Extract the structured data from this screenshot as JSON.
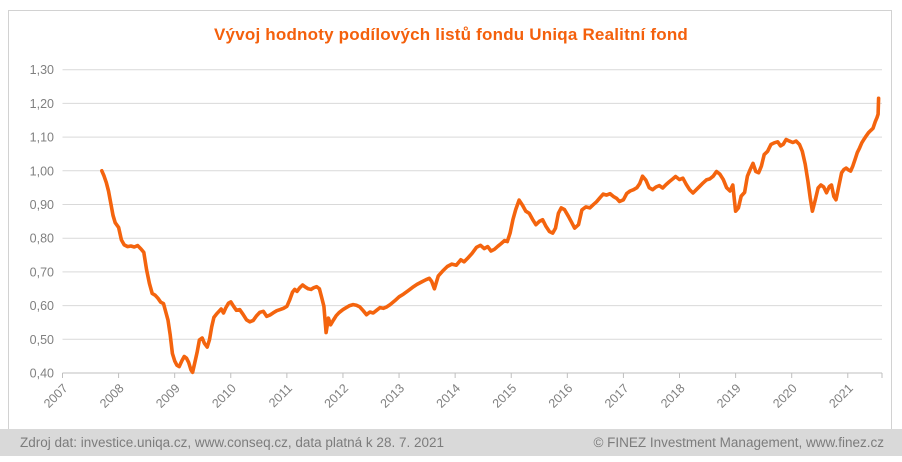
{
  "title": "Vývoj hodnoty podílových listů fondu Uniqa Realitní fond",
  "footer": {
    "left": "Zdroj dat: investice.uniqa.cz, www.conseq.cz, data platná k 28. 7. 2021",
    "right": "© FINEZ Investment Management, www.finez.cz"
  },
  "colors": {
    "accent": "#F4640E",
    "title_text": "#F4600C",
    "grid_line": "#D9D9D9",
    "axis_line": "#BFBFBF",
    "axis_text": "#808080",
    "frame_border": "#D2D2D2",
    "footer_bg": "#D9D9D9",
    "footer_text": "#7C7C7C",
    "background": "#FFFFFF"
  },
  "chart_data": {
    "type": "line",
    "title": "Vývoj hodnoty podílových listů fondu Uniqa Realitní fond",
    "xlabel": "",
    "ylabel": "",
    "grid": true,
    "legend": "none",
    "xlim": [
      2007,
      2021.61
    ],
    "ylim": [
      0.4,
      1.3
    ],
    "x_ticks": [
      "2007",
      "2008",
      "2009",
      "2010",
      "2011",
      "2012",
      "2013",
      "2014",
      "2015",
      "2016",
      "2017",
      "2018",
      "2019",
      "2020",
      "2021"
    ],
    "y_ticks": [
      "1,30",
      "1,20",
      "1,10",
      "1,00",
      "0,90",
      "0,80",
      "0,70",
      "0,60",
      "0,50",
      "0,40"
    ],
    "y_tick_values": [
      1.3,
      1.2,
      1.1,
      1.0,
      0.9,
      0.8,
      0.7,
      0.6,
      0.5,
      0.4
    ],
    "series": [
      {
        "points": [
          [
            2007.7,
            1.0
          ],
          [
            2007.74,
            0.985
          ],
          [
            2007.78,
            0.965
          ],
          [
            2007.82,
            0.94
          ],
          [
            2007.86,
            0.905
          ],
          [
            2007.9,
            0.868
          ],
          [
            2007.94,
            0.846
          ],
          [
            2008.0,
            0.832
          ],
          [
            2008.05,
            0.795
          ],
          [
            2008.1,
            0.78
          ],
          [
            2008.16,
            0.775
          ],
          [
            2008.22,
            0.777
          ],
          [
            2008.28,
            0.774
          ],
          [
            2008.34,
            0.778
          ],
          [
            2008.4,
            0.768
          ],
          [
            2008.45,
            0.758
          ],
          [
            2008.5,
            0.706
          ],
          [
            2008.55,
            0.666
          ],
          [
            2008.6,
            0.636
          ],
          [
            2008.65,
            0.631
          ],
          [
            2008.7,
            0.622
          ],
          [
            2008.75,
            0.61
          ],
          [
            2008.8,
            0.606
          ],
          [
            2008.84,
            0.582
          ],
          [
            2008.88,
            0.557
          ],
          [
            2008.92,
            0.513
          ],
          [
            2008.96,
            0.458
          ],
          [
            2009.0,
            0.436
          ],
          [
            2009.04,
            0.423
          ],
          [
            2009.08,
            0.419
          ],
          [
            2009.13,
            0.437
          ],
          [
            2009.17,
            0.449
          ],
          [
            2009.21,
            0.444
          ],
          [
            2009.25,
            0.431
          ],
          [
            2009.29,
            0.409
          ],
          [
            2009.32,
            0.402
          ],
          [
            2009.36,
            0.432
          ],
          [
            2009.4,
            0.461
          ],
          [
            2009.44,
            0.498
          ],
          [
            2009.49,
            0.504
          ],
          [
            2009.53,
            0.488
          ],
          [
            2009.58,
            0.477
          ],
          [
            2009.62,
            0.499
          ],
          [
            2009.66,
            0.537
          ],
          [
            2009.7,
            0.565
          ],
          [
            2009.75,
            0.576
          ],
          [
            2009.79,
            0.583
          ],
          [
            2009.83,
            0.59
          ],
          [
            2009.87,
            0.578
          ],
          [
            2009.91,
            0.593
          ],
          [
            2009.96,
            0.607
          ],
          [
            2010.0,
            0.611
          ],
          [
            2010.05,
            0.598
          ],
          [
            2010.1,
            0.586
          ],
          [
            2010.16,
            0.588
          ],
          [
            2010.22,
            0.574
          ],
          [
            2010.28,
            0.558
          ],
          [
            2010.34,
            0.552
          ],
          [
            2010.4,
            0.556
          ],
          [
            2010.46,
            0.57
          ],
          [
            2010.52,
            0.58
          ],
          [
            2010.58,
            0.583
          ],
          [
            2010.64,
            0.568
          ],
          [
            2010.7,
            0.572
          ],
          [
            2010.76,
            0.579
          ],
          [
            2010.82,
            0.585
          ],
          [
            2010.88,
            0.588
          ],
          [
            2010.94,
            0.592
          ],
          [
            2011.0,
            0.598
          ],
          [
            2011.05,
            0.617
          ],
          [
            2011.1,
            0.64
          ],
          [
            2011.14,
            0.648
          ],
          [
            2011.18,
            0.642
          ],
          [
            2011.23,
            0.653
          ],
          [
            2011.28,
            0.661
          ],
          [
            2011.33,
            0.655
          ],
          [
            2011.38,
            0.65
          ],
          [
            2011.43,
            0.648
          ],
          [
            2011.48,
            0.653
          ],
          [
            2011.53,
            0.656
          ],
          [
            2011.58,
            0.65
          ],
          [
            2011.62,
            0.625
          ],
          [
            2011.66,
            0.598
          ],
          [
            2011.7,
            0.52
          ],
          [
            2011.74,
            0.563
          ],
          [
            2011.78,
            0.543
          ],
          [
            2011.83,
            0.557
          ],
          [
            2011.88,
            0.57
          ],
          [
            2011.93,
            0.579
          ],
          [
            2012.0,
            0.588
          ],
          [
            2012.06,
            0.594
          ],
          [
            2012.12,
            0.6
          ],
          [
            2012.18,
            0.603
          ],
          [
            2012.24,
            0.601
          ],
          [
            2012.3,
            0.596
          ],
          [
            2012.36,
            0.585
          ],
          [
            2012.42,
            0.573
          ],
          [
            2012.48,
            0.581
          ],
          [
            2012.54,
            0.578
          ],
          [
            2012.6,
            0.586
          ],
          [
            2012.66,
            0.594
          ],
          [
            2012.72,
            0.592
          ],
          [
            2012.78,
            0.596
          ],
          [
            2012.84,
            0.603
          ],
          [
            2012.92,
            0.614
          ],
          [
            2013.0,
            0.626
          ],
          [
            2013.08,
            0.634
          ],
          [
            2013.16,
            0.644
          ],
          [
            2013.24,
            0.654
          ],
          [
            2013.32,
            0.663
          ],
          [
            2013.4,
            0.67
          ],
          [
            2013.48,
            0.677
          ],
          [
            2013.54,
            0.681
          ],
          [
            2013.58,
            0.672
          ],
          [
            2013.63,
            0.65
          ],
          [
            2013.7,
            0.688
          ],
          [
            2013.78,
            0.703
          ],
          [
            2013.86,
            0.716
          ],
          [
            2013.94,
            0.723
          ],
          [
            2014.02,
            0.72
          ],
          [
            2014.1,
            0.736
          ],
          [
            2014.16,
            0.73
          ],
          [
            2014.22,
            0.74
          ],
          [
            2014.3,
            0.755
          ],
          [
            2014.38,
            0.773
          ],
          [
            2014.45,
            0.779
          ],
          [
            2014.52,
            0.769
          ],
          [
            2014.58,
            0.775
          ],
          [
            2014.64,
            0.762
          ],
          [
            2014.7,
            0.767
          ],
          [
            2014.76,
            0.776
          ],
          [
            2014.82,
            0.784
          ],
          [
            2014.88,
            0.793
          ],
          [
            2014.93,
            0.79
          ],
          [
            2014.98,
            0.815
          ],
          [
            2015.03,
            0.855
          ],
          [
            2015.08,
            0.885
          ],
          [
            2015.14,
            0.913
          ],
          [
            2015.2,
            0.898
          ],
          [
            2015.26,
            0.88
          ],
          [
            2015.32,
            0.874
          ],
          [
            2015.38,
            0.856
          ],
          [
            2015.44,
            0.84
          ],
          [
            2015.5,
            0.85
          ],
          [
            2015.56,
            0.855
          ],
          [
            2015.62,
            0.835
          ],
          [
            2015.68,
            0.82
          ],
          [
            2015.74,
            0.815
          ],
          [
            2015.79,
            0.83
          ],
          [
            2015.84,
            0.874
          ],
          [
            2015.89,
            0.89
          ],
          [
            2015.95,
            0.885
          ],
          [
            2016.02,
            0.865
          ],
          [
            2016.08,
            0.846
          ],
          [
            2016.13,
            0.83
          ],
          [
            2016.2,
            0.84
          ],
          [
            2016.26,
            0.884
          ],
          [
            2016.33,
            0.893
          ],
          [
            2016.4,
            0.89
          ],
          [
            2016.46,
            0.899
          ],
          [
            2016.52,
            0.908
          ],
          [
            2016.58,
            0.92
          ],
          [
            2016.64,
            0.931
          ],
          [
            2016.7,
            0.928
          ],
          [
            2016.76,
            0.932
          ],
          [
            2016.82,
            0.924
          ],
          [
            2016.88,
            0.918
          ],
          [
            2016.93,
            0.909
          ],
          [
            2017.0,
            0.914
          ],
          [
            2017.06,
            0.933
          ],
          [
            2017.12,
            0.94
          ],
          [
            2017.18,
            0.944
          ],
          [
            2017.24,
            0.95
          ],
          [
            2017.29,
            0.962
          ],
          [
            2017.34,
            0.984
          ],
          [
            2017.4,
            0.972
          ],
          [
            2017.46,
            0.95
          ],
          [
            2017.52,
            0.944
          ],
          [
            2017.58,
            0.952
          ],
          [
            2017.64,
            0.956
          ],
          [
            2017.7,
            0.949
          ],
          [
            2017.76,
            0.959
          ],
          [
            2017.82,
            0.968
          ],
          [
            2017.88,
            0.976
          ],
          [
            2017.93,
            0.983
          ],
          [
            2018.0,
            0.974
          ],
          [
            2018.06,
            0.978
          ],
          [
            2018.12,
            0.96
          ],
          [
            2018.18,
            0.944
          ],
          [
            2018.24,
            0.934
          ],
          [
            2018.3,
            0.944
          ],
          [
            2018.36,
            0.954
          ],
          [
            2018.42,
            0.964
          ],
          [
            2018.48,
            0.973
          ],
          [
            2018.54,
            0.976
          ],
          [
            2018.6,
            0.984
          ],
          [
            2018.66,
            0.998
          ],
          [
            2018.72,
            0.99
          ],
          [
            2018.78,
            0.974
          ],
          [
            2018.84,
            0.95
          ],
          [
            2018.9,
            0.94
          ],
          [
            2018.95,
            0.958
          ],
          [
            2019.0,
            0.88
          ],
          [
            2019.05,
            0.89
          ],
          [
            2019.1,
            0.925
          ],
          [
            2019.16,
            0.936
          ],
          [
            2019.21,
            0.984
          ],
          [
            2019.26,
            1.004
          ],
          [
            2019.31,
            1.022
          ],
          [
            2019.36,
            0.998
          ],
          [
            2019.41,
            0.994
          ],
          [
            2019.46,
            1.014
          ],
          [
            2019.51,
            1.048
          ],
          [
            2019.57,
            1.058
          ],
          [
            2019.63,
            1.078
          ],
          [
            2019.69,
            1.083
          ],
          [
            2019.75,
            1.086
          ],
          [
            2019.8,
            1.074
          ],
          [
            2019.85,
            1.079
          ],
          [
            2019.9,
            1.093
          ],
          [
            2019.96,
            1.088
          ],
          [
            2020.02,
            1.084
          ],
          [
            2020.08,
            1.088
          ],
          [
            2020.14,
            1.078
          ],
          [
            2020.19,
            1.058
          ],
          [
            2020.24,
            1.02
          ],
          [
            2020.29,
            0.968
          ],
          [
            2020.33,
            0.92
          ],
          [
            2020.37,
            0.88
          ],
          [
            2020.42,
            0.914
          ],
          [
            2020.47,
            0.949
          ],
          [
            2020.52,
            0.958
          ],
          [
            2020.57,
            0.952
          ],
          [
            2020.62,
            0.935
          ],
          [
            2020.67,
            0.953
          ],
          [
            2020.71,
            0.958
          ],
          [
            2020.75,
            0.924
          ],
          [
            2020.79,
            0.914
          ],
          [
            2020.84,
            0.954
          ],
          [
            2020.89,
            0.994
          ],
          [
            2020.93,
            1.004
          ],
          [
            2020.97,
            1.008
          ],
          [
            2021.01,
            1.003
          ],
          [
            2021.05,
            0.999
          ],
          [
            2021.09,
            1.014
          ],
          [
            2021.13,
            1.034
          ],
          [
            2021.17,
            1.054
          ],
          [
            2021.21,
            1.068
          ],
          [
            2021.25,
            1.083
          ],
          [
            2021.29,
            1.094
          ],
          [
            2021.33,
            1.104
          ],
          [
            2021.37,
            1.113
          ],
          [
            2021.41,
            1.12
          ],
          [
            2021.45,
            1.126
          ],
          [
            2021.49,
            1.146
          ],
          [
            2021.52,
            1.158
          ],
          [
            2021.54,
            1.168
          ],
          [
            2021.55,
            1.215
          ]
        ]
      }
    ]
  }
}
